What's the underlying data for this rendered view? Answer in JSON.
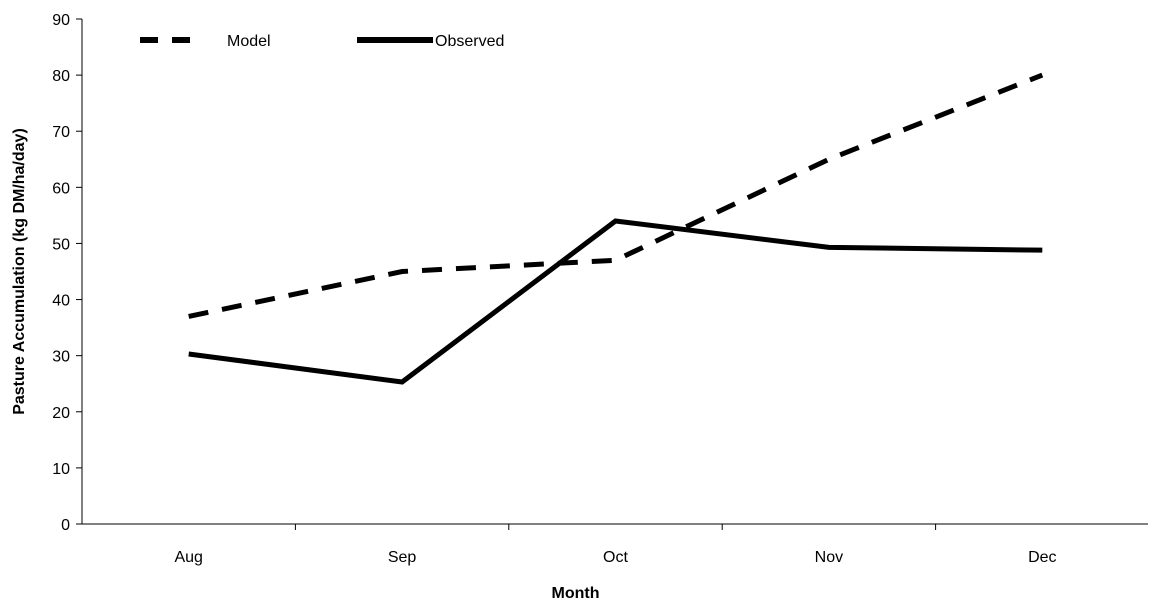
{
  "chart_data": {
    "type": "line",
    "title": "",
    "xlabel": "Month",
    "ylabel": "Pasture Accumulation (kg DM/ha/day)",
    "categories": [
      "Aug",
      "Sep",
      "Oct",
      "Nov",
      "Dec"
    ],
    "ylim": [
      0,
      90
    ],
    "yticks": [
      0,
      10,
      20,
      30,
      40,
      50,
      60,
      70,
      80,
      90
    ],
    "grid": false,
    "legend_position": "top-left",
    "series": [
      {
        "name": "Model",
        "style": "dashed",
        "color": "#000000",
        "values": [
          37,
          45,
          47,
          65,
          80
        ]
      },
      {
        "name": "Observed",
        "style": "solid",
        "color": "#000000",
        "values": [
          30.3,
          25.3,
          54.0,
          49.3,
          48.8
        ]
      }
    ]
  }
}
